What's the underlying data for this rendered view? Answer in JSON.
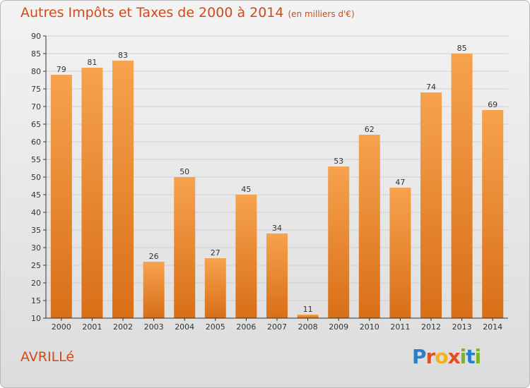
{
  "page": {
    "title": "Autres Impôts et Taxes de 2000 à 2014",
    "subtitle": "(en milliers d'€)",
    "commune": "AVRILLé",
    "logo": {
      "text": "Proxiti",
      "letters": [
        "P",
        "r",
        "o",
        "x",
        "i",
        "t",
        "i"
      ]
    }
  },
  "chart_data": {
    "type": "bar",
    "categories": [
      "2000",
      "2001",
      "2002",
      "2003",
      "2004",
      "2005",
      "2006",
      "2007",
      "2008",
      "2009",
      "2010",
      "2011",
      "2012",
      "2013",
      "2014"
    ],
    "values": [
      79,
      81,
      83,
      26,
      50,
      27,
      45,
      34,
      11,
      53,
      62,
      47,
      74,
      85,
      69
    ],
    "ylim": [
      10,
      90
    ],
    "yticks": [
      10,
      15,
      20,
      25,
      30,
      35,
      40,
      45,
      50,
      55,
      60,
      65,
      70,
      75,
      80,
      85,
      90
    ],
    "grid": true,
    "xlabel": "",
    "ylabel": "",
    "bar_colors": {
      "top": "#f7a24e",
      "bottom": "#d86f17"
    }
  }
}
